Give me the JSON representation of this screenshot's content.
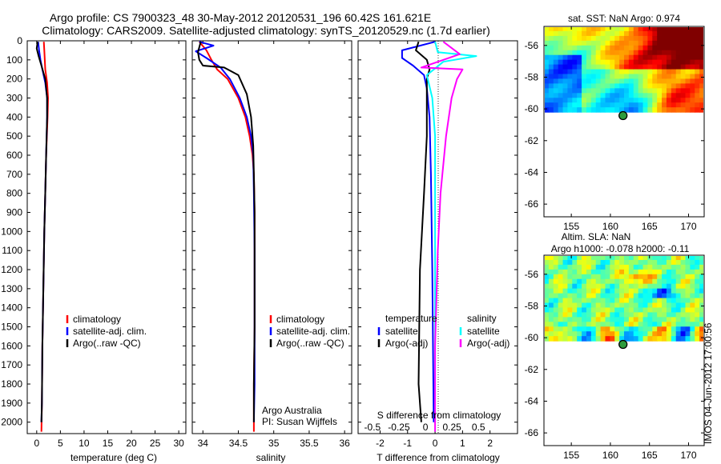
{
  "header": {
    "line1": "Argo profile: CS 7900323_48 30-May-2012 20120531_196 60.42S 161.621E",
    "line2": "Climatology: CARS2009. Satellite-adjusted climatology: synTS_20120529.nc (1.7d earlier)"
  },
  "side_stamp": "IMOS 04-Jun-2012 17:00:56",
  "colors": {
    "climatology": "#ff0000",
    "satellite": "#0000ff",
    "argo": "#000000",
    "sat_salinity": "#00ffff",
    "argo_salinity_adj": "#ff00ff",
    "float_marker": "#2e9b3c"
  },
  "chart_data": [
    {
      "type": "line",
      "id": "temperature",
      "xlabel": "temperature (deg C)",
      "ylabel": "",
      "xlim": [
        -2,
        31.5
      ],
      "ylim": [
        2060,
        0
      ],
      "xticks": [
        "0",
        "5",
        "10",
        "15",
        "20",
        "25",
        "30"
      ],
      "xtick_values": [
        0,
        5,
        10,
        15,
        20,
        25,
        30
      ],
      "yticks": [
        "0",
        "100",
        "200",
        "300",
        "400",
        "500",
        "600",
        "700",
        "800",
        "900",
        "1000",
        "1100",
        "1200",
        "1300",
        "1400",
        "1500",
        "1600",
        "1700",
        "1800",
        "1900",
        "2000"
      ],
      "ytick_values": [
        0,
        100,
        200,
        300,
        400,
        500,
        600,
        700,
        800,
        900,
        1000,
        1100,
        1200,
        1300,
        1400,
        1500,
        1600,
        1700,
        1800,
        1900,
        2000
      ],
      "legend_position": "lower-middle",
      "series": [
        {
          "name": "climatology",
          "color": "#ff0000",
          "x": [
            1.5,
            1.6,
            1.7,
            1.8,
            2.2,
            2.4,
            2.3,
            2.0,
            1.8,
            1.6,
            1.4,
            1.2,
            1.1,
            1.0
          ],
          "y": [
            5,
            50,
            100,
            150,
            220,
            300,
            400,
            600,
            800,
            1000,
            1300,
            1600,
            1900,
            2050
          ]
        },
        {
          "name": "satellite-adj. clim.",
          "color": "#0000ff",
          "x": [
            0.3,
            0.5,
            0.8,
            1.2,
            1.8,
            2.2,
            2.2,
            2.0,
            1.8,
            1.6,
            1.4,
            1.2,
            1.1,
            1.0
          ],
          "y": [
            5,
            50,
            100,
            150,
            220,
            300,
            400,
            600,
            800,
            1000,
            1300,
            1600,
            1900,
            2000
          ]
        },
        {
          "name": "Argo(..raw -QC)",
          "color": "#000000",
          "x": [
            0.2,
            0.0,
            0.4,
            1.0,
            1.8,
            2.2,
            2.2,
            2.0,
            1.8,
            1.6,
            1.4,
            1.2,
            1.1,
            1.0
          ],
          "y": [
            5,
            40,
            80,
            130,
            200,
            300,
            400,
            600,
            800,
            1000,
            1300,
            1600,
            1900,
            2000
          ]
        }
      ]
    },
    {
      "type": "line",
      "id": "salinity",
      "xlabel": "salinity",
      "xlim": [
        33.85,
        36.1
      ],
      "ylim": [
        2060,
        0
      ],
      "xticks": [
        "34",
        "34.5",
        "35",
        "35.5",
        "36"
      ],
      "xtick_values": [
        34,
        34.5,
        35,
        35.5,
        36
      ],
      "legend_position": "lower-right",
      "series": [
        {
          "name": "climatology",
          "color": "#ff0000",
          "x": [
            33.95,
            34.05,
            34.12,
            34.2,
            34.35,
            34.5,
            34.6,
            34.66,
            34.7,
            34.72,
            34.73,
            34.73,
            34.73,
            34.72,
            34.72
          ],
          "y": [
            5,
            50,
            100,
            150,
            200,
            300,
            400,
            500,
            600,
            700,
            900,
            1200,
            1500,
            1800,
            2050
          ]
        },
        {
          "name": "satellite-adj. clim.",
          "color": "#0000ff",
          "x": [
            33.95,
            34.15,
            33.9,
            34.05,
            34.25,
            34.38,
            34.52,
            34.62,
            34.68,
            34.71,
            34.72,
            34.73,
            34.73,
            34.73,
            34.72
          ],
          "y": [
            5,
            25,
            55,
            90,
            140,
            200,
            300,
            400,
            500,
            600,
            800,
            1100,
            1500,
            1800,
            2000
          ]
        },
        {
          "name": "Argo(..raw -QC)",
          "color": "#000000",
          "x": [
            33.97,
            33.93,
            33.95,
            34.0,
            34.3,
            34.5,
            34.62,
            34.68,
            34.71,
            34.72,
            34.73,
            34.73,
            34.73,
            34.72,
            34.72
          ],
          "y": [
            5,
            60,
            100,
            130,
            140,
            180,
            280,
            400,
            550,
            700,
            900,
            1200,
            1500,
            1800,
            2000
          ]
        }
      ],
      "annotations": [
        "Argo Australia",
        "PI: Susan Wijffels"
      ]
    },
    {
      "type": "line",
      "id": "difference",
      "xlabel": "T difference from climatology",
      "secondary_xlabel": "S difference from climatology",
      "xlim": [
        -2.8,
        3.0
      ],
      "ylim": [
        2060,
        0
      ],
      "xticks": [
        "-2",
        "-1",
        "0",
        "1",
        "2"
      ],
      "xtick_values": [
        -2,
        -1,
        0,
        1,
        2
      ],
      "secondary_xticks": [
        "-0.5",
        "-0.25",
        "0",
        "0.25",
        "0.5"
      ],
      "secondary_xtick_values": [
        -0.5,
        -0.25,
        0,
        0.25,
        0.5
      ],
      "legend_position": "lower-middle",
      "legend_group_titles": [
        "temperature",
        "salinity"
      ],
      "series": [
        {
          "name": "satellite",
          "group": "temperature",
          "color": "#0000ff",
          "x": [
            0.0,
            -1.2,
            -1.2,
            -0.8,
            -0.4,
            -0.3,
            -0.2,
            -0.15,
            -0.1,
            -0.05
          ],
          "y": [
            5,
            50,
            90,
            130,
            180,
            250,
            400,
            700,
            1200,
            2000
          ]
        },
        {
          "name": "Argo(-adj)",
          "group": "temperature",
          "color": "#000000",
          "x": [
            -0.6,
            -0.7,
            -0.3,
            -0.2,
            -0.3,
            -0.3,
            -0.3,
            -0.4,
            -0.55,
            -0.6,
            -0.5
          ],
          "y": [
            5,
            50,
            100,
            150,
            200,
            300,
            500,
            800,
            1200,
            1800,
            2000
          ]
        },
        {
          "name": "satellite",
          "group": "salinity",
          "color": "#00ffff",
          "x": [
            0.0,
            0.1,
            1.5,
            0.3,
            -0.3,
            -0.1,
            0.0,
            0.0,
            0.0,
            0.0
          ],
          "y": [
            5,
            60,
            80,
            110,
            180,
            300,
            500,
            800,
            1300,
            2000
          ]
        },
        {
          "name": "Argo(-adj)",
          "group": "salinity",
          "color": "#ff00ff",
          "x": [
            0.3,
            0.9,
            -0.5,
            1.0,
            0.8,
            0.6,
            0.4,
            0.2,
            0.1,
            0.0,
            0.0
          ],
          "y": [
            5,
            70,
            140,
            150,
            200,
            300,
            500,
            800,
            1100,
            1600,
            2050
          ]
        }
      ]
    },
    {
      "type": "heatmap",
      "id": "sst-map",
      "title": "sat. SST: NaN Argo: 0.974",
      "xlim": [
        151.5,
        172
      ],
      "ylim": [
        -66.8,
        -54.8
      ],
      "xticks": [
        "155",
        "160",
        "165",
        "170"
      ],
      "xtick_values": [
        155,
        160,
        165,
        170
      ],
      "yticks": [
        "-56",
        "-58",
        "-60",
        "-62",
        "-64",
        "-66"
      ],
      "ytick_values": [
        -56,
        -58,
        -60,
        -62,
        -64,
        -66
      ],
      "data_extent_lat": [
        -60.2,
        -54.8
      ],
      "float_position": {
        "lon": 161.621,
        "lat": -60.42
      }
    },
    {
      "type": "heatmap",
      "id": "sla-map",
      "title": "Altim. SLA: NaN",
      "subtitle": "Argo h1000: -0.078 h2000: -0.11",
      "xlim": [
        151.5,
        172
      ],
      "ylim": [
        -66.8,
        -54.8
      ],
      "xticks": [
        "155",
        "160",
        "165",
        "170"
      ],
      "xtick_values": [
        155,
        160,
        165,
        170
      ],
      "yticks": [
        "-56",
        "-58",
        "-60",
        "-62",
        "-64",
        "-66"
      ],
      "ytick_values": [
        -56,
        -58,
        -60,
        -62,
        -64,
        -66
      ],
      "data_extent_lat": [
        -60.2,
        -54.8
      ],
      "float_position": {
        "lon": 161.621,
        "lat": -60.42
      }
    }
  ]
}
